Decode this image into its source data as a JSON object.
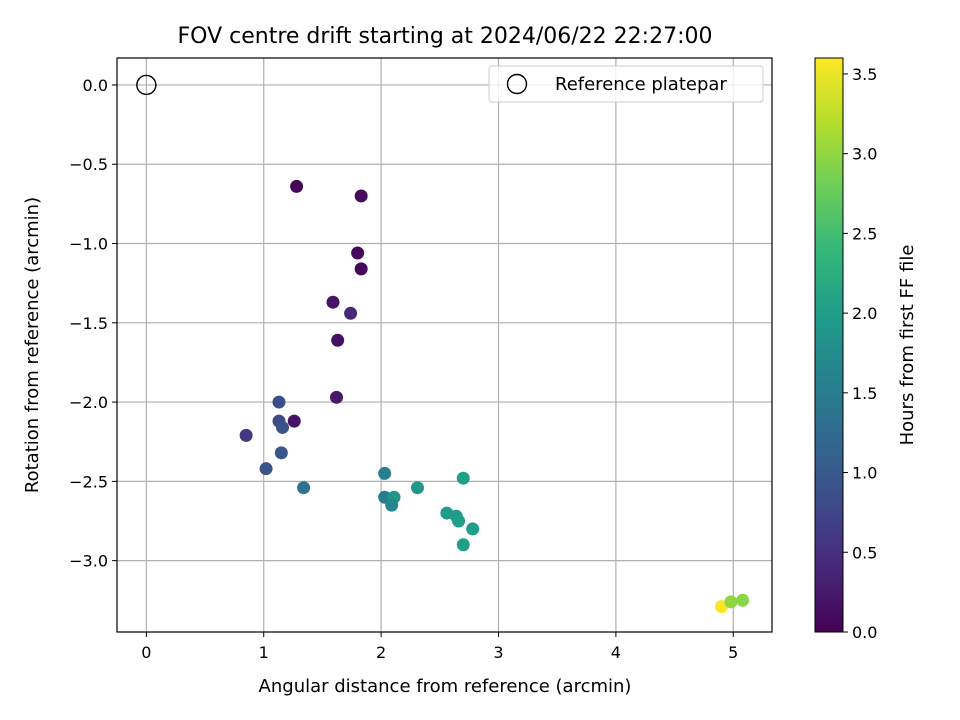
{
  "chart_data": {
    "type": "scatter",
    "title": "FOV centre drift starting at 2024/06/22 22:27:00",
    "xlabel": "Angular distance from reference (arcmin)",
    "ylabel": "Rotation from reference (arcmin)",
    "xlim": [
      -0.25,
      5.33
    ],
    "ylim": [
      -3.45,
      0.17
    ],
    "xticks": [
      0,
      1,
      2,
      3,
      4,
      5
    ],
    "xtick_labels": [
      "0",
      "1",
      "2",
      "3",
      "4",
      "5"
    ],
    "yticks": [
      0.0,
      -0.5,
      -1.0,
      -1.5,
      -2.0,
      -2.5,
      -3.0
    ],
    "ytick_labels": [
      "0.0",
      "−0.5",
      "−1.0",
      "−1.5",
      "−2.0",
      "−2.5",
      "−3.0"
    ],
    "grid": true,
    "legend": {
      "location": "top-right",
      "entries": [
        "Reference platepar"
      ]
    },
    "reference_point": {
      "x": 0,
      "y": 0,
      "label": "Reference platepar"
    },
    "colorbar": {
      "label": "Hours from first FF file",
      "colormap": "viridis",
      "range": [
        0,
        3.6
      ],
      "ticks": [
        0.0,
        0.5,
        1.0,
        1.5,
        2.0,
        2.5,
        3.0,
        3.5
      ],
      "tick_labels": [
        "0.0",
        "0.5",
        "1.0",
        "1.5",
        "2.0",
        "2.5",
        "3.0",
        "3.5"
      ]
    },
    "points": [
      {
        "x": 1.28,
        "y": -0.64,
        "hours": 0.05
      },
      {
        "x": 1.83,
        "y": -0.7,
        "hours": 0.1
      },
      {
        "x": 1.8,
        "y": -1.06,
        "hours": 0.08
      },
      {
        "x": 1.83,
        "y": -1.16,
        "hours": 0.06
      },
      {
        "x": 1.59,
        "y": -1.37,
        "hours": 0.2
      },
      {
        "x": 1.74,
        "y": -1.44,
        "hours": 0.4
      },
      {
        "x": 1.63,
        "y": -1.61,
        "hours": 0.15
      },
      {
        "x": 1.62,
        "y": -1.97,
        "hours": 0.25
      },
      {
        "x": 1.26,
        "y": -2.12,
        "hours": 0.18
      },
      {
        "x": 1.13,
        "y": -2.0,
        "hours": 0.85
      },
      {
        "x": 1.13,
        "y": -2.12,
        "hours": 0.8
      },
      {
        "x": 1.16,
        "y": -2.16,
        "hours": 0.9
      },
      {
        "x": 0.85,
        "y": -2.21,
        "hours": 0.6
      },
      {
        "x": 1.15,
        "y": -2.32,
        "hours": 0.95
      },
      {
        "x": 1.02,
        "y": -2.42,
        "hours": 0.92
      },
      {
        "x": 1.34,
        "y": -2.54,
        "hours": 1.35
      },
      {
        "x": 2.03,
        "y": -2.45,
        "hours": 1.55
      },
      {
        "x": 2.03,
        "y": -2.6,
        "hours": 1.55
      },
      {
        "x": 2.11,
        "y": -2.6,
        "hours": 1.85
      },
      {
        "x": 2.09,
        "y": -2.65,
        "hours": 1.65
      },
      {
        "x": 2.31,
        "y": -2.54,
        "hours": 1.9
      },
      {
        "x": 2.7,
        "y": -2.48,
        "hours": 2.0
      },
      {
        "x": 2.56,
        "y": -2.7,
        "hours": 1.95
      },
      {
        "x": 2.64,
        "y": -2.72,
        "hours": 1.95
      },
      {
        "x": 2.66,
        "y": -2.75,
        "hours": 2.0
      },
      {
        "x": 2.78,
        "y": -2.8,
        "hours": 2.0
      },
      {
        "x": 2.7,
        "y": -2.9,
        "hours": 2.0
      },
      {
        "x": 4.9,
        "y": -3.29,
        "hours": 3.6
      },
      {
        "x": 4.98,
        "y": -3.26,
        "hours": 3.0
      },
      {
        "x": 5.08,
        "y": -3.25,
        "hours": 2.95
      }
    ]
  }
}
